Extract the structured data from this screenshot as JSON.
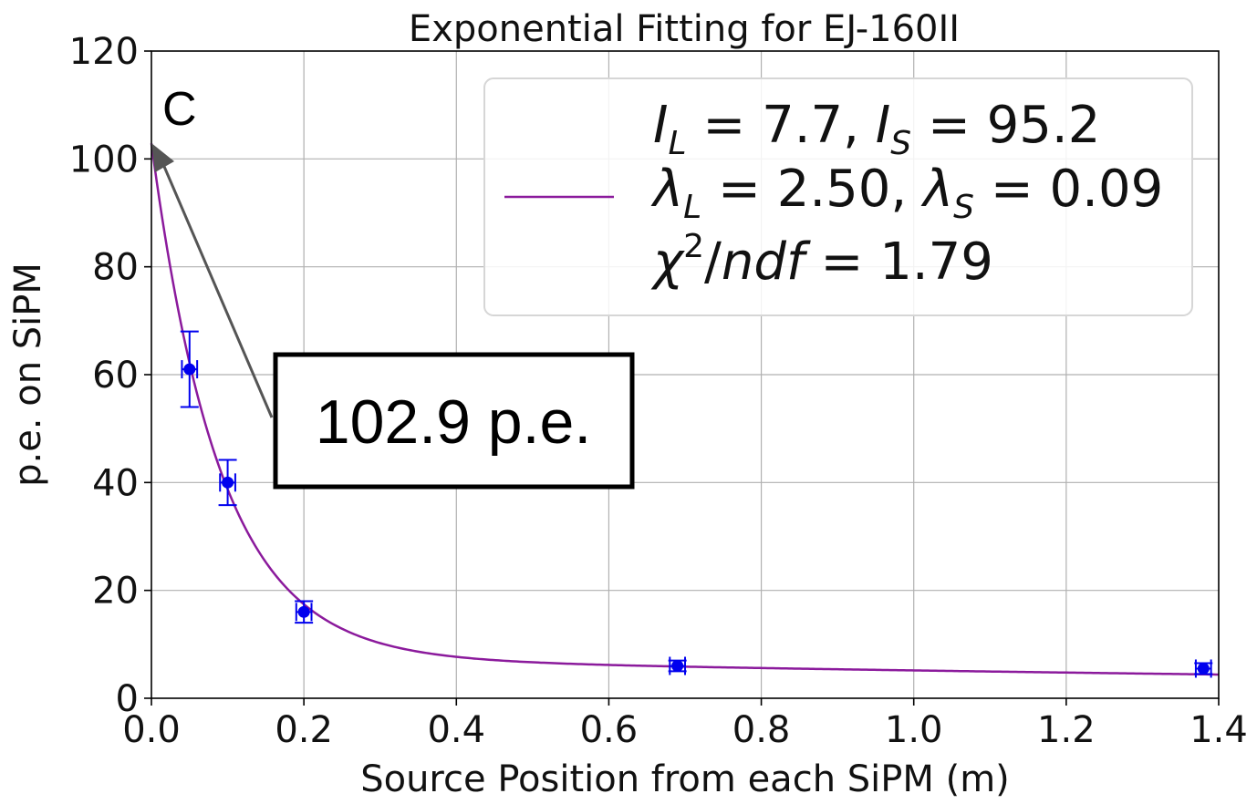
{
  "chart_data": {
    "type": "scatter",
    "title": "Exponential Fitting for EJ-160II",
    "xlabel": "Source Position from each SiPM (m)",
    "ylabel": "p.e. on SiPM",
    "xlim": [
      0,
      1.4
    ],
    "ylim": [
      0,
      120
    ],
    "xticks": [
      "0.0",
      "0.2",
      "0.4",
      "0.6",
      "0.8",
      "1.0",
      "1.2",
      "1.4"
    ],
    "yticks": [
      "0",
      "20",
      "40",
      "60",
      "80",
      "100",
      "120"
    ],
    "grid": true,
    "panel_letter": "C",
    "points": {
      "x": [
        0.05,
        0.1,
        0.2,
        0.69,
        1.38
      ],
      "y": [
        61,
        40,
        16,
        6,
        5.5
      ],
      "yerr": [
        7,
        4.2,
        2,
        1,
        1
      ],
      "xerr": [
        0.01,
        0.01,
        0.01,
        0.01,
        0.01
      ],
      "color": "#0000ee"
    },
    "fit": {
      "model": "I_L*exp(-x/λ_L) + I_S*exp(-x/λ_S)",
      "I_L": 7.7,
      "I_S": 95.2,
      "lambda_L": 2.5,
      "lambda_S": 0.09,
      "color": "#8b1a9c"
    },
    "legend": {
      "placement": "top-right",
      "line1_parts": [
        "I",
        "L",
        " = 7.7, ",
        "I",
        "S",
        " = 95.2"
      ],
      "line2_parts": [
        "λ",
        "L",
        " = 2.50, ",
        "λ",
        "S",
        " = 0.09"
      ],
      "line3_parts": [
        "χ",
        "2",
        "/",
        "ndf",
        " = 1.79"
      ]
    },
    "annotation": {
      "text": "102.9 p.e.",
      "arrow_to": [
        0,
        102.9
      ]
    }
  }
}
